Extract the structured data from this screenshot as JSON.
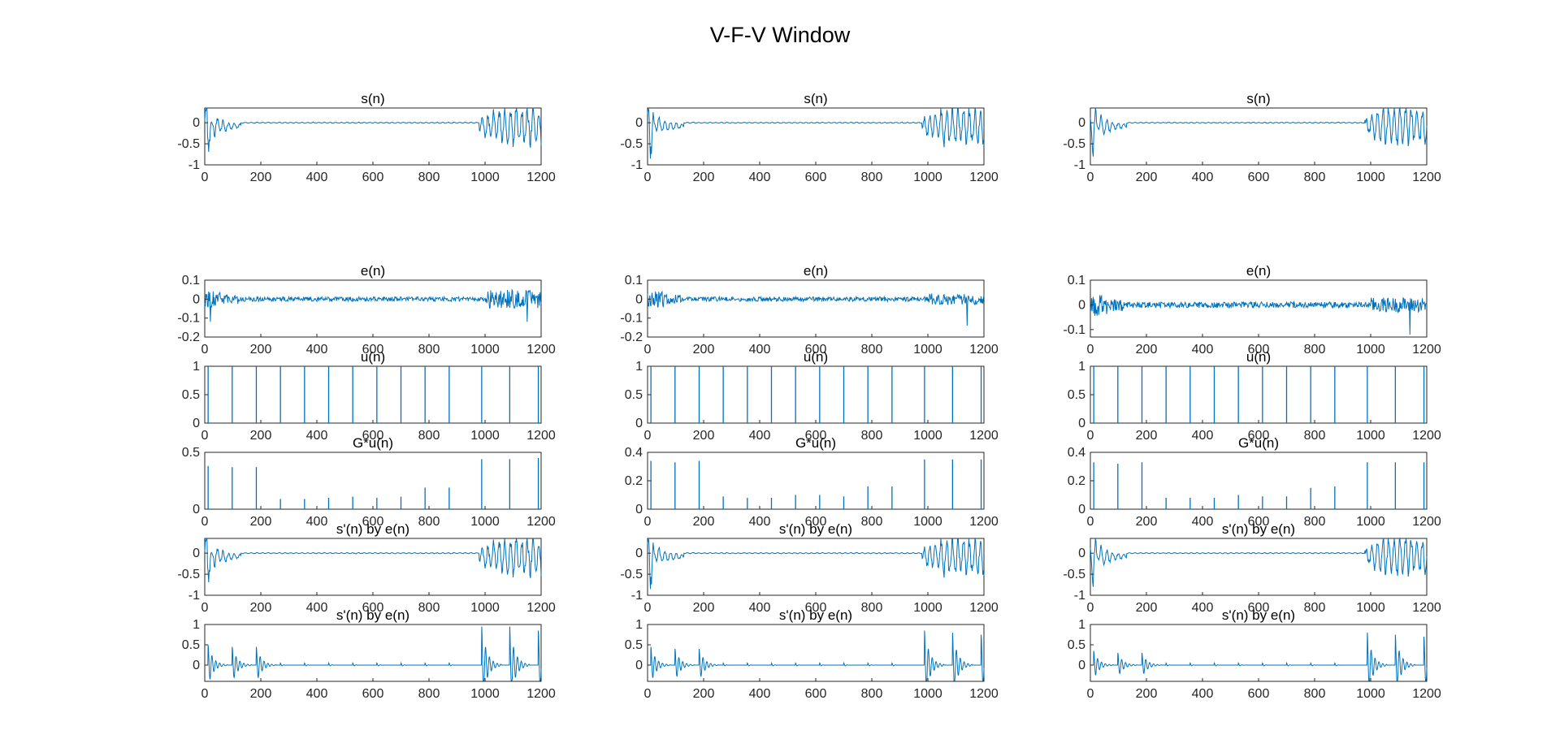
{
  "figure_title": "V-F-V Window",
  "chart_data": {
    "type": "line",
    "layout": {
      "rows": 6,
      "cols": 3
    },
    "line_color": "#0072BD",
    "xlim": [
      0,
      1200
    ],
    "xticks": [
      0,
      200,
      400,
      600,
      800,
      1000,
      1200
    ],
    "panels": [
      {
        "row": 0,
        "col": 0,
        "title": "s(n)",
        "kind": "speech",
        "ylim": [
          -1,
          0.35
        ],
        "yticks": [
          0,
          -0.5,
          -1
        ],
        "ytick_labels": [
          "0",
          "-0.5",
          "-1"
        ]
      },
      {
        "row": 0,
        "col": 1,
        "title": "s(n)",
        "kind": "speech",
        "ylim": [
          -1,
          0.35
        ],
        "yticks": [
          0,
          -0.5,
          -1
        ],
        "ytick_labels": [
          "0",
          "-0.5",
          "-1"
        ]
      },
      {
        "row": 0,
        "col": 2,
        "title": "s(n)",
        "kind": "speech",
        "ylim": [
          -1,
          0.35
        ],
        "yticks": [
          0,
          -0.5,
          -1
        ],
        "ytick_labels": [
          "0",
          "-0.5",
          "-1"
        ]
      },
      {
        "row": 2,
        "col": 0,
        "title": "e(n)",
        "kind": "error",
        "ylim": [
          -0.2,
          0.1
        ],
        "yticks": [
          0.1,
          0,
          -0.1,
          -0.2
        ],
        "ytick_labels": [
          "0.1",
          "0",
          "-0.1",
          "-0.2"
        ]
      },
      {
        "row": 2,
        "col": 1,
        "title": "e(n)",
        "kind": "error",
        "ylim": [
          -0.2,
          0.1
        ],
        "yticks": [
          0.1,
          0,
          -0.1,
          -0.2
        ],
        "ytick_labels": [
          "0.1",
          "0",
          "-0.1",
          "-0.2"
        ]
      },
      {
        "row": 2,
        "col": 2,
        "title": "e(n)",
        "kind": "error",
        "ylim": [
          -0.13,
          0.1
        ],
        "yticks": [
          0.1,
          0,
          -0.1
        ],
        "ytick_labels": [
          "0.1",
          "0",
          "-0.1"
        ]
      },
      {
        "row": 3,
        "col": 0,
        "title": "u(n)",
        "kind": "impulse",
        "ylim": [
          0,
          1
        ],
        "yticks": [
          1,
          0.5,
          0
        ],
        "ytick_labels": [
          "1",
          "0.5",
          "0"
        ],
        "impulses_x": [
          12,
          98,
          184,
          270,
          356,
          442,
          528,
          614,
          700,
          786,
          872,
          988,
          1088,
          1190
        ],
        "impulses_y": [
          1,
          1,
          1,
          1,
          1,
          1,
          1,
          1,
          1,
          1,
          1,
          1,
          1,
          1
        ]
      },
      {
        "row": 3,
        "col": 1,
        "title": "u(n)",
        "kind": "impulse",
        "ylim": [
          0,
          1
        ],
        "yticks": [
          1,
          0.5,
          0
        ],
        "ytick_labels": [
          "1",
          "0.5",
          "0"
        ],
        "impulses_x": [
          12,
          98,
          184,
          270,
          356,
          442,
          528,
          614,
          700,
          786,
          872,
          988,
          1088,
          1190
        ],
        "impulses_y": [
          1,
          1,
          1,
          1,
          1,
          1,
          1,
          1,
          1,
          1,
          1,
          1,
          1,
          1
        ]
      },
      {
        "row": 3,
        "col": 2,
        "title": "u(n)",
        "kind": "impulse",
        "ylim": [
          0,
          1
        ],
        "yticks": [
          1,
          0.5,
          0
        ],
        "ytick_labels": [
          "1",
          "0.5",
          "0"
        ],
        "impulses_x": [
          12,
          98,
          184,
          270,
          356,
          442,
          528,
          614,
          700,
          786,
          872,
          988,
          1088,
          1190
        ],
        "impulses_y": [
          1,
          1,
          1,
          1,
          1,
          1,
          1,
          1,
          1,
          1,
          1,
          1,
          1,
          1
        ]
      },
      {
        "row": 4,
        "col": 0,
        "title": "G*u(n)",
        "kind": "impulse",
        "ylim": [
          0,
          0.5
        ],
        "yticks": [
          0.5,
          0
        ],
        "ytick_labels": [
          "0.5",
          "0"
        ],
        "impulses_x": [
          12,
          98,
          184,
          270,
          356,
          442,
          528,
          614,
          700,
          786,
          872,
          988,
          1088,
          1190
        ],
        "impulses_y": [
          0.38,
          0.37,
          0.37,
          0.09,
          0.09,
          0.1,
          0.11,
          0.1,
          0.11,
          0.19,
          0.19,
          0.44,
          0.44,
          0.45
        ]
      },
      {
        "row": 4,
        "col": 1,
        "title": "G*u(n)",
        "kind": "impulse",
        "ylim": [
          0,
          0.4
        ],
        "yticks": [
          0.4,
          0.2,
          0
        ],
        "ytick_labels": [
          "0.4",
          "0.2",
          "0"
        ],
        "impulses_x": [
          12,
          98,
          184,
          270,
          356,
          442,
          528,
          614,
          700,
          786,
          872,
          988,
          1088,
          1190
        ],
        "impulses_y": [
          0.34,
          0.33,
          0.34,
          0.09,
          0.08,
          0.08,
          0.1,
          0.1,
          0.09,
          0.16,
          0.16,
          0.35,
          0.35,
          0.35
        ]
      },
      {
        "row": 4,
        "col": 2,
        "title": "G*u(n)",
        "kind": "impulse",
        "ylim": [
          0,
          0.4
        ],
        "yticks": [
          0.4,
          0.2,
          0
        ],
        "ytick_labels": [
          "0.4",
          "0.2",
          "0"
        ],
        "impulses_x": [
          12,
          98,
          184,
          270,
          356,
          442,
          528,
          614,
          700,
          786,
          872,
          988,
          1088,
          1190
        ],
        "impulses_y": [
          0.33,
          0.32,
          0.33,
          0.08,
          0.08,
          0.08,
          0.1,
          0.09,
          0.09,
          0.15,
          0.16,
          0.33,
          0.33,
          0.33
        ]
      },
      {
        "row": 5,
        "col": 0,
        "title": "s'(n) by e(n)",
        "kind": "speech",
        "ylim": [
          -1,
          0.35
        ],
        "yticks": [
          0,
          -0.5,
          -1
        ],
        "ytick_labels": [
          "0",
          "-0.5",
          "-1"
        ]
      },
      {
        "row": 5,
        "col": 1,
        "title": "s'(n) by e(n)",
        "kind": "speech",
        "ylim": [
          -1,
          0.35
        ],
        "yticks": [
          0,
          -0.5,
          -1
        ],
        "ytick_labels": [
          "0",
          "-0.5",
          "-1"
        ]
      },
      {
        "row": 5,
        "col": 2,
        "title": "s'(n) by e(n)",
        "kind": "speech",
        "ylim": [
          -1,
          0.35
        ],
        "yticks": [
          0,
          -0.5,
          -1
        ],
        "ytick_labels": [
          "0",
          "-0.5",
          "-1"
        ]
      },
      {
        "row": 6,
        "col": 0,
        "title": "s'(n) by e(n)",
        "kind": "response",
        "ylim": [
          -0.4,
          1
        ],
        "yticks": [
          1,
          0.5,
          0
        ],
        "ytick_labels": [
          "1",
          "0.5",
          "0"
        ]
      },
      {
        "row": 6,
        "col": 1,
        "title": "s'(n) by e(n)",
        "kind": "response",
        "ylim": [
          -0.4,
          1
        ],
        "yticks": [
          1,
          0.5,
          0
        ],
        "ytick_labels": [
          "1",
          "0.5",
          "0"
        ]
      },
      {
        "row": 6,
        "col": 2,
        "title": "s'(n) by e(n)",
        "kind": "response",
        "ylim": [
          -0.4,
          1
        ],
        "yticks": [
          1,
          0.5,
          0
        ],
        "ytick_labels": [
          "1",
          "0.5",
          "0"
        ]
      }
    ]
  }
}
